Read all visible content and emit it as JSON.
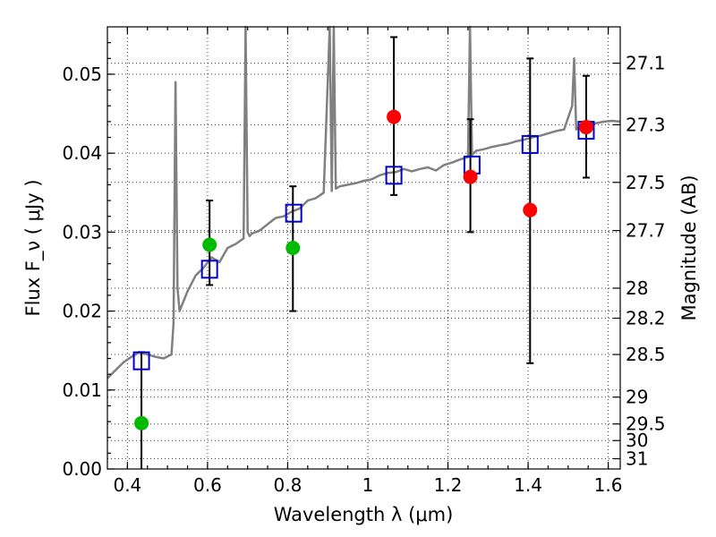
{
  "chart_data": {
    "type": "scatter",
    "xlabel": "Wavelength  λ (μm)",
    "ylabel": "Flux  F_ν  ( μJy )",
    "ylabel_right": "Magnitude (AB)",
    "xlim": [
      0.35,
      1.63
    ],
    "ylim": [
      0.0,
      0.056
    ],
    "grid": true,
    "x_ticks": [
      0.4,
      0.6,
      0.8,
      1.0,
      1.2,
      1.4,
      1.6
    ],
    "x_tick_labels": [
      "0.4",
      "0.6",
      "0.8",
      "1",
      "1.2",
      "1.4",
      "1.6"
    ],
    "y_ticks": [
      0.0,
      0.01,
      0.02,
      0.03,
      0.04,
      0.05
    ],
    "y_tick_labels": [
      "0.00",
      "0.01",
      "0.02",
      "0.03",
      "0.04",
      "0.05"
    ],
    "right_ticks": [
      {
        "label": "27.1",
        "flux": 0.0514
      },
      {
        "label": "27.3",
        "flux": 0.0436
      },
      {
        "label": "27.5",
        "flux": 0.0363
      },
      {
        "label": "27.7",
        "flux": 0.0302
      },
      {
        "label": "28",
        "flux": 0.0229
      },
      {
        "label": "28.2",
        "flux": 0.0191
      },
      {
        "label": "28.5",
        "flux": 0.0145
      },
      {
        "label": "29",
        "flux": 0.0091
      },
      {
        "label": "29.5",
        "flux": 0.0057
      },
      {
        "label": "30",
        "flux": 0.0036
      },
      {
        "label": "31",
        "flux": 0.0013
      }
    ],
    "series": [
      {
        "kind": "spectrum",
        "color": "#808080",
        "x": [
          0.35,
          0.37,
          0.39,
          0.41,
          0.43,
          0.45,
          0.47,
          0.49,
          0.51,
          0.515,
          0.52,
          0.525,
          0.53,
          0.55,
          0.57,
          0.59,
          0.61,
          0.63,
          0.65,
          0.67,
          0.69,
          0.695,
          0.7,
          0.705,
          0.71,
          0.73,
          0.75,
          0.77,
          0.79,
          0.81,
          0.83,
          0.85,
          0.87,
          0.89,
          0.905,
          0.91,
          0.915,
          0.92,
          0.93,
          0.95,
          0.97,
          0.99,
          1.01,
          1.03,
          1.05,
          1.07,
          1.09,
          1.11,
          1.13,
          1.15,
          1.17,
          1.19,
          1.21,
          1.23,
          1.25,
          1.255,
          1.26,
          1.265,
          1.27,
          1.29,
          1.31,
          1.33,
          1.35,
          1.37,
          1.39,
          1.41,
          1.43,
          1.45,
          1.47,
          1.49,
          1.51,
          1.515,
          1.52,
          1.53,
          1.55,
          1.57,
          1.59,
          1.61,
          1.63
        ],
        "y": [
          0.0115,
          0.0125,
          0.0135,
          0.0142,
          0.0148,
          0.0145,
          0.0142,
          0.014,
          0.0145,
          0.0185,
          0.049,
          0.023,
          0.02,
          0.0225,
          0.0245,
          0.0255,
          0.0268,
          0.0262,
          0.028,
          0.0285,
          0.0292,
          0.056,
          0.03,
          0.0295,
          0.0298,
          0.0302,
          0.031,
          0.0318,
          0.032,
          0.0326,
          0.033,
          0.034,
          0.0343,
          0.035,
          0.056,
          0.0352,
          0.056,
          0.0355,
          0.0358,
          0.036,
          0.0362,
          0.0365,
          0.0367,
          0.0372,
          0.0375,
          0.0376,
          0.038,
          0.0377,
          0.038,
          0.0382,
          0.0378,
          0.0385,
          0.0388,
          0.0392,
          0.0395,
          0.056,
          0.0398,
          0.04,
          0.0403,
          0.0405,
          0.0408,
          0.041,
          0.0412,
          0.0415,
          0.0417,
          0.042,
          0.0422,
          0.0425,
          0.0428,
          0.043,
          0.046,
          0.052,
          0.043,
          0.0435,
          0.0437,
          0.0438,
          0.044,
          0.0441,
          0.044
        ]
      },
      {
        "kind": "model-photometry",
        "marker": "open-square",
        "color": "#0000cc",
        "x": [
          0.435,
          0.605,
          0.815,
          1.065,
          1.26,
          1.405,
          1.545
        ],
        "y": [
          0.0137,
          0.0253,
          0.0324,
          0.0372,
          0.0385,
          0.0411,
          0.0429
        ]
      },
      {
        "kind": "observed-optical",
        "marker": "filled-circle",
        "color": "#00bb00",
        "x": [
          0.435,
          0.605,
          0.813
        ],
        "y": [
          0.0058,
          0.0284,
          0.028
        ],
        "err_low": [
          0.0,
          0.0233,
          0.02
        ],
        "err_high": [
          0.0148,
          0.034,
          0.0358
        ]
      },
      {
        "kind": "observed-nir",
        "marker": "filled-circle",
        "color": "#ff0000",
        "x": [
          1.065,
          1.256,
          1.405,
          1.545
        ],
        "y": [
          0.0446,
          0.037,
          0.0328,
          0.0433
        ],
        "err_low": [
          0.0347,
          0.03,
          0.0134,
          0.0369
        ],
        "err_high": [
          0.0547,
          0.0443,
          0.052,
          0.0498
        ]
      }
    ]
  }
}
